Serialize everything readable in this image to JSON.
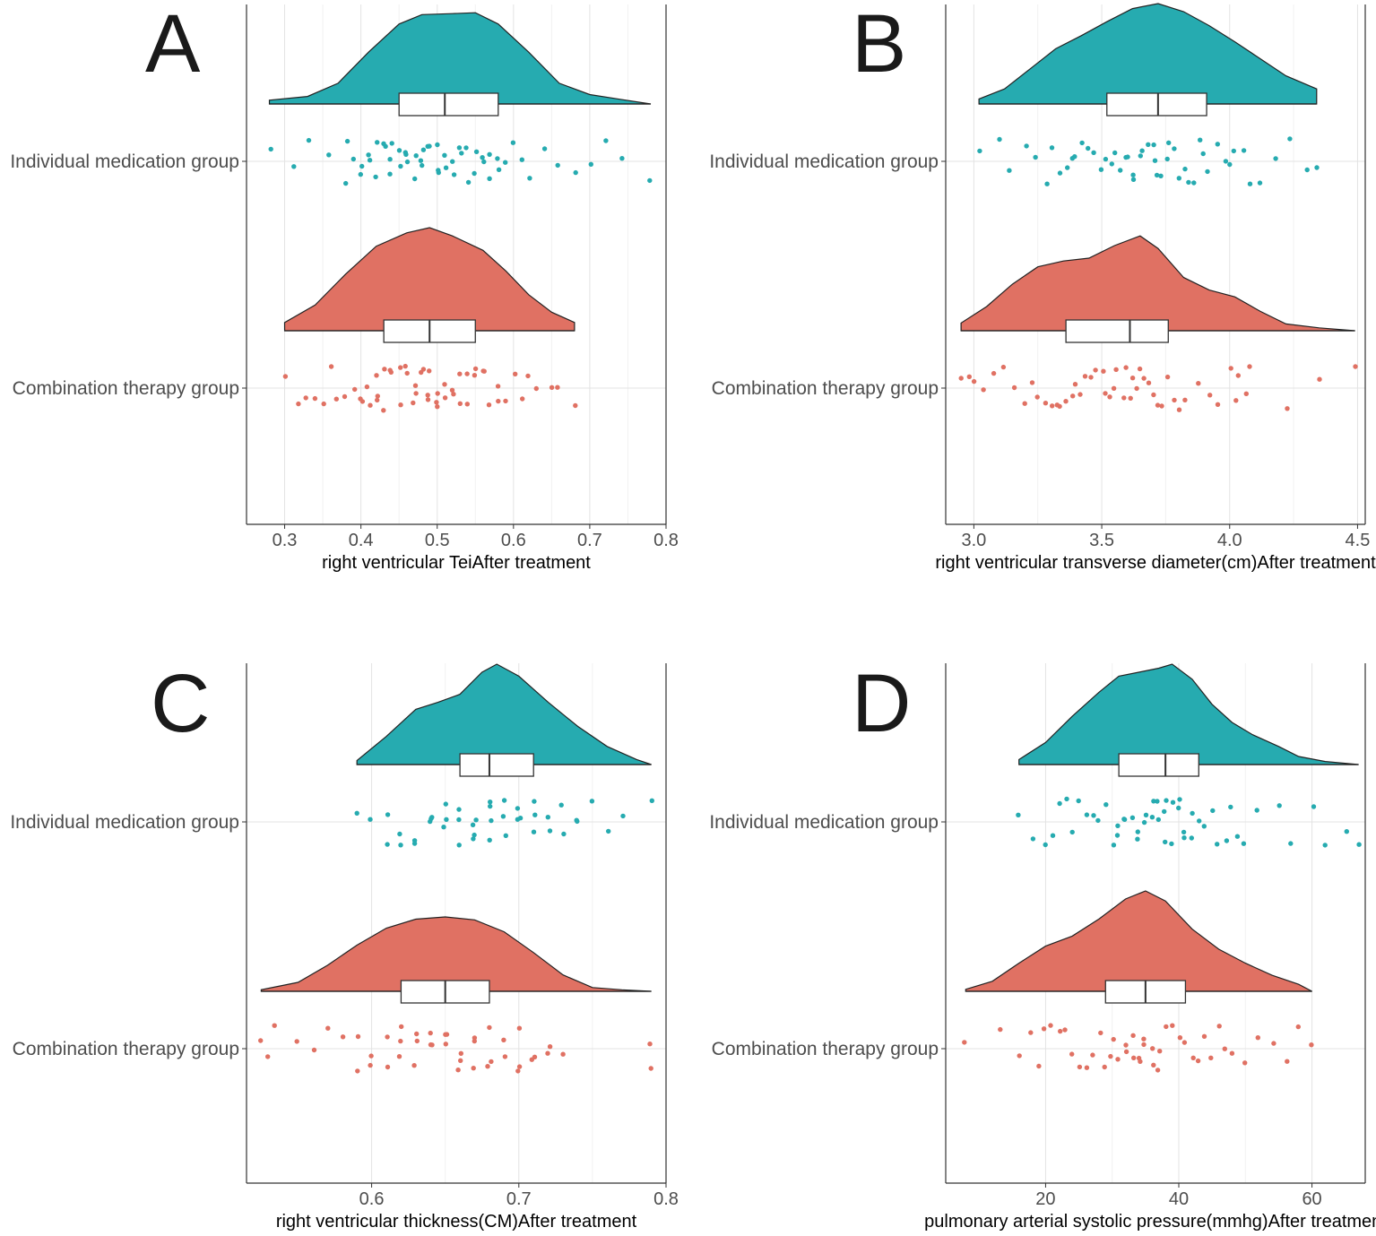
{
  "colors": {
    "individual": "#26abb0",
    "combination": "#e07163"
  },
  "chart_data": [
    {
      "type": "raincloud",
      "panel": "A",
      "xlabel": "right ventricular TeiAfter treatment",
      "ylabel": "",
      "xlim": [
        0.25,
        0.8
      ],
      "xticks": [
        0.3,
        0.4,
        0.5,
        0.6,
        0.7,
        0.8
      ],
      "tick_labels": [
        "0.3",
        "0.4",
        "0.5",
        "0.6",
        "0.7",
        "0.8"
      ],
      "categories": [
        "Individual medication group",
        "Combination therapy group"
      ],
      "series": [
        {
          "category": "Individual medication group",
          "color_key": "individual",
          "range": [
            0.28,
            0.78
          ],
          "box": {
            "q1": 0.45,
            "median": 0.51,
            "q3": 0.58
          },
          "density": [
            [
              0.28,
              0.04
            ],
            [
              0.33,
              0.08
            ],
            [
              0.37,
              0.22
            ],
            [
              0.41,
              0.55
            ],
            [
              0.45,
              0.85
            ],
            [
              0.48,
              0.95
            ],
            [
              0.52,
              0.96
            ],
            [
              0.55,
              0.97
            ],
            [
              0.58,
              0.85
            ],
            [
              0.62,
              0.55
            ],
            [
              0.66,
              0.22
            ],
            [
              0.7,
              0.1
            ],
            [
              0.74,
              0.05
            ],
            [
              0.78,
              0.0
            ]
          ],
          "points": [
            0.28,
            0.31,
            0.33,
            0.36,
            0.38,
            0.38,
            0.39,
            0.4,
            0.4,
            0.41,
            0.41,
            0.42,
            0.42,
            0.43,
            0.43,
            0.44,
            0.44,
            0.44,
            0.45,
            0.45,
            0.46,
            0.46,
            0.46,
            0.47,
            0.47,
            0.48,
            0.48,
            0.48,
            0.49,
            0.49,
            0.5,
            0.5,
            0.5,
            0.51,
            0.51,
            0.52,
            0.52,
            0.53,
            0.53,
            0.54,
            0.54,
            0.55,
            0.55,
            0.56,
            0.56,
            0.57,
            0.57,
            0.58,
            0.58,
            0.59,
            0.6,
            0.61,
            0.62,
            0.64,
            0.66,
            0.68,
            0.7,
            0.72,
            0.74,
            0.78
          ]
        },
        {
          "category": "Combination therapy group",
          "color_key": "combination",
          "range": [
            0.3,
            0.68
          ],
          "box": {
            "q1": 0.43,
            "median": 0.49,
            "q3": 0.55
          },
          "density": [
            [
              0.3,
              0.08
            ],
            [
              0.34,
              0.25
            ],
            [
              0.38,
              0.55
            ],
            [
              0.42,
              0.82
            ],
            [
              0.46,
              0.95
            ],
            [
              0.49,
              1.0
            ],
            [
              0.52,
              0.92
            ],
            [
              0.56,
              0.78
            ],
            [
              0.59,
              0.58
            ],
            [
              0.62,
              0.35
            ],
            [
              0.65,
              0.18
            ],
            [
              0.68,
              0.08
            ]
          ],
          "points": [
            0.3,
            0.32,
            0.33,
            0.34,
            0.35,
            0.36,
            0.37,
            0.38,
            0.39,
            0.4,
            0.4,
            0.41,
            0.41,
            0.42,
            0.42,
            0.42,
            0.43,
            0.43,
            0.44,
            0.44,
            0.45,
            0.45,
            0.46,
            0.46,
            0.47,
            0.47,
            0.47,
            0.48,
            0.48,
            0.49,
            0.49,
            0.49,
            0.5,
            0.5,
            0.5,
            0.51,
            0.51,
            0.52,
            0.52,
            0.53,
            0.53,
            0.54,
            0.54,
            0.55,
            0.55,
            0.56,
            0.56,
            0.57,
            0.58,
            0.58,
            0.59,
            0.6,
            0.61,
            0.62,
            0.63,
            0.65,
            0.66,
            0.68
          ]
        }
      ]
    },
    {
      "type": "raincloud",
      "panel": "B",
      "xlabel": "right ventricular transverse diameter(cm)After treatment",
      "ylabel": "",
      "xlim": [
        2.89,
        4.53
      ],
      "xticks": [
        3.0,
        3.5,
        4.0,
        4.5
      ],
      "tick_labels": [
        "3.0",
        "3.5",
        "4.0",
        "4.5"
      ],
      "categories": [
        "Individual medication group",
        "Combination therapy group"
      ],
      "series": [
        {
          "category": "Individual medication group",
          "color_key": "individual",
          "range": [
            3.02,
            4.34
          ],
          "box": {
            "q1": 3.52,
            "median": 3.72,
            "q3": 3.91
          },
          "density": [
            [
              3.02,
              0.05
            ],
            [
              3.12,
              0.15
            ],
            [
              3.22,
              0.35
            ],
            [
              3.32,
              0.55
            ],
            [
              3.42,
              0.68
            ],
            [
              3.52,
              0.82
            ],
            [
              3.62,
              0.95
            ],
            [
              3.72,
              1.0
            ],
            [
              3.82,
              0.92
            ],
            [
              3.92,
              0.78
            ],
            [
              4.02,
              0.62
            ],
            [
              4.12,
              0.45
            ],
            [
              4.22,
              0.28
            ],
            [
              4.34,
              0.15
            ]
          ],
          "points": [
            3.02,
            3.1,
            3.14,
            3.2,
            3.24,
            3.28,
            3.3,
            3.33,
            3.36,
            3.38,
            3.4,
            3.42,
            3.45,
            3.47,
            3.5,
            3.52,
            3.54,
            3.55,
            3.57,
            3.59,
            3.6,
            3.62,
            3.63,
            3.65,
            3.66,
            3.68,
            3.7,
            3.71,
            3.72,
            3.73,
            3.75,
            3.76,
            3.78,
            3.8,
            3.82,
            3.84,
            3.86,
            3.88,
            3.9,
            3.92,
            3.95,
            3.98,
            4.0,
            4.02,
            4.05,
            4.08,
            4.12,
            4.18,
            4.24,
            4.3,
            4.34
          ]
        },
        {
          "category": "Combination therapy group",
          "color_key": "combination",
          "range": [
            2.95,
            4.49
          ],
          "box": {
            "q1": 3.36,
            "median": 3.61,
            "q3": 3.76
          },
          "density": [
            [
              2.95,
              0.08
            ],
            [
              3.05,
              0.25
            ],
            [
              3.15,
              0.48
            ],
            [
              3.25,
              0.66
            ],
            [
              3.35,
              0.72
            ],
            [
              3.45,
              0.75
            ],
            [
              3.55,
              0.88
            ],
            [
              3.65,
              0.98
            ],
            [
              3.72,
              0.85
            ],
            [
              3.82,
              0.55
            ],
            [
              3.92,
              0.42
            ],
            [
              4.02,
              0.35
            ],
            [
              4.12,
              0.2
            ],
            [
              4.22,
              0.07
            ],
            [
              4.35,
              0.03
            ],
            [
              4.49,
              0.0
            ]
          ],
          "points": [
            2.95,
            2.98,
            3.0,
            3.04,
            3.08,
            3.12,
            3.16,
            3.2,
            3.23,
            3.25,
            3.28,
            3.3,
            3.32,
            3.34,
            3.36,
            3.38,
            3.4,
            3.42,
            3.44,
            3.46,
            3.48,
            3.5,
            3.52,
            3.53,
            3.55,
            3.56,
            3.58,
            3.6,
            3.61,
            3.62,
            3.64,
            3.65,
            3.67,
            3.68,
            3.7,
            3.72,
            3.74,
            3.76,
            3.78,
            3.8,
            3.83,
            3.88,
            3.92,
            3.96,
            4.0,
            4.02,
            4.04,
            4.06,
            4.08,
            4.22,
            4.35,
            4.49
          ]
        }
      ]
    },
    {
      "type": "raincloud",
      "panel": "C",
      "xlabel": "right ventricular thickness(CM)After treatment",
      "ylabel": "",
      "xlim": [
        0.515,
        0.8
      ],
      "xticks": [
        0.6,
        0.7,
        0.8
      ],
      "tick_labels": [
        "0.6",
        "0.7",
        "0.8"
      ],
      "categories": [
        "Individual medication group",
        "Combination therapy group"
      ],
      "series": [
        {
          "category": "Individual medication group",
          "color_key": "individual",
          "range": [
            0.59,
            0.79
          ],
          "box": {
            "q1": 0.66,
            "median": 0.68,
            "q3": 0.71
          },
          "density": [
            [
              0.59,
              0.04
            ],
            [
              0.61,
              0.28
            ],
            [
              0.63,
              0.55
            ],
            [
              0.645,
              0.62
            ],
            [
              0.66,
              0.7
            ],
            [
              0.675,
              0.92
            ],
            [
              0.685,
              1.0
            ],
            [
              0.7,
              0.88
            ],
            [
              0.72,
              0.62
            ],
            [
              0.74,
              0.38
            ],
            [
              0.76,
              0.18
            ],
            [
              0.78,
              0.05
            ],
            [
              0.79,
              0.0
            ]
          ],
          "points": [
            0.59,
            0.6,
            0.61,
            0.61,
            0.62,
            0.62,
            0.63,
            0.63,
            0.64,
            0.64,
            0.64,
            0.65,
            0.65,
            0.65,
            0.66,
            0.66,
            0.66,
            0.67,
            0.67,
            0.67,
            0.67,
            0.68,
            0.68,
            0.68,
            0.68,
            0.69,
            0.69,
            0.69,
            0.7,
            0.7,
            0.7,
            0.71,
            0.71,
            0.71,
            0.72,
            0.72,
            0.73,
            0.73,
            0.74,
            0.74,
            0.75,
            0.76,
            0.77,
            0.79
          ]
        },
        {
          "category": "Combination therapy group",
          "color_key": "combination",
          "range": [
            0.525,
            0.79
          ],
          "box": {
            "q1": 0.62,
            "median": 0.65,
            "q3": 0.68
          },
          "density": [
            [
              0.525,
              0.02
            ],
            [
              0.55,
              0.12
            ],
            [
              0.57,
              0.35
            ],
            [
              0.59,
              0.62
            ],
            [
              0.61,
              0.85
            ],
            [
              0.63,
              0.97
            ],
            [
              0.65,
              1.0
            ],
            [
              0.67,
              0.96
            ],
            [
              0.69,
              0.8
            ],
            [
              0.71,
              0.52
            ],
            [
              0.73,
              0.22
            ],
            [
              0.75,
              0.05
            ],
            [
              0.77,
              0.02
            ],
            [
              0.79,
              0.0
            ]
          ],
          "points": [
            0.525,
            0.53,
            0.535,
            0.55,
            0.56,
            0.57,
            0.58,
            0.59,
            0.59,
            0.6,
            0.6,
            0.61,
            0.61,
            0.62,
            0.62,
            0.62,
            0.63,
            0.63,
            0.63,
            0.64,
            0.64,
            0.64,
            0.65,
            0.65,
            0.65,
            0.66,
            0.66,
            0.66,
            0.67,
            0.67,
            0.67,
            0.68,
            0.68,
            0.68,
            0.69,
            0.69,
            0.7,
            0.7,
            0.7,
            0.71,
            0.71,
            0.72,
            0.72,
            0.73,
            0.79,
            0.79
          ]
        }
      ]
    },
    {
      "type": "raincloud",
      "panel": "D",
      "xlabel": "pulmonary arterial systolic pressure(mmhg)After treatment",
      "ylabel": "",
      "xlim": [
        5,
        68
      ],
      "xticks": [
        20,
        40,
        60
      ],
      "tick_labels": [
        "20",
        "40",
        "60"
      ],
      "categories": [
        "Individual medication group",
        "Combination therapy group"
      ],
      "series": [
        {
          "category": "Individual medication group",
          "color_key": "individual",
          "range": [
            16,
            67
          ],
          "box": {
            "q1": 31,
            "median": 38,
            "q3": 43
          },
          "density": [
            [
              16,
              0.05
            ],
            [
              20,
              0.22
            ],
            [
              24,
              0.48
            ],
            [
              28,
              0.72
            ],
            [
              31,
              0.88
            ],
            [
              34,
              0.92
            ],
            [
              37,
              0.96
            ],
            [
              39,
              1.0
            ],
            [
              42,
              0.85
            ],
            [
              45,
              0.6
            ],
            [
              48,
              0.42
            ],
            [
              51,
              0.3
            ],
            [
              55,
              0.18
            ],
            [
              58,
              0.08
            ],
            [
              62,
              0.03
            ],
            [
              67,
              0.0
            ]
          ],
          "points": [
            16,
            18,
            20,
            21,
            22,
            23,
            24,
            25,
            26,
            27,
            28,
            29,
            30,
            31,
            31,
            32,
            32,
            33,
            34,
            34,
            35,
            35,
            36,
            36,
            37,
            37,
            38,
            38,
            38,
            39,
            39,
            40,
            40,
            41,
            41,
            42,
            42,
            43,
            44,
            45,
            46,
            47,
            48,
            49,
            50,
            52,
            55,
            57,
            60,
            62,
            65,
            67
          ]
        },
        {
          "category": "Combination therapy group",
          "color_key": "combination",
          "range": [
            8,
            60
          ],
          "box": {
            "q1": 29,
            "median": 35,
            "q3": 41
          },
          "density": [
            [
              8,
              0.02
            ],
            [
              12,
              0.1
            ],
            [
              16,
              0.28
            ],
            [
              20,
              0.45
            ],
            [
              24,
              0.55
            ],
            [
              28,
              0.72
            ],
            [
              32,
              0.92
            ],
            [
              35,
              1.0
            ],
            [
              38,
              0.9
            ],
            [
              42,
              0.62
            ],
            [
              46,
              0.42
            ],
            [
              50,
              0.28
            ],
            [
              54,
              0.16
            ],
            [
              58,
              0.07
            ],
            [
              60,
              0.0
            ]
          ],
          "points": [
            8,
            13,
            16,
            18,
            19,
            20,
            21,
            22,
            23,
            24,
            25,
            26,
            27,
            28,
            29,
            30,
            30,
            31,
            32,
            32,
            33,
            33,
            34,
            34,
            35,
            35,
            36,
            36,
            37,
            37,
            38,
            39,
            40,
            41,
            42,
            43,
            44,
            45,
            46,
            47,
            48,
            50,
            52,
            54,
            56,
            58,
            60
          ]
        }
      ]
    }
  ]
}
